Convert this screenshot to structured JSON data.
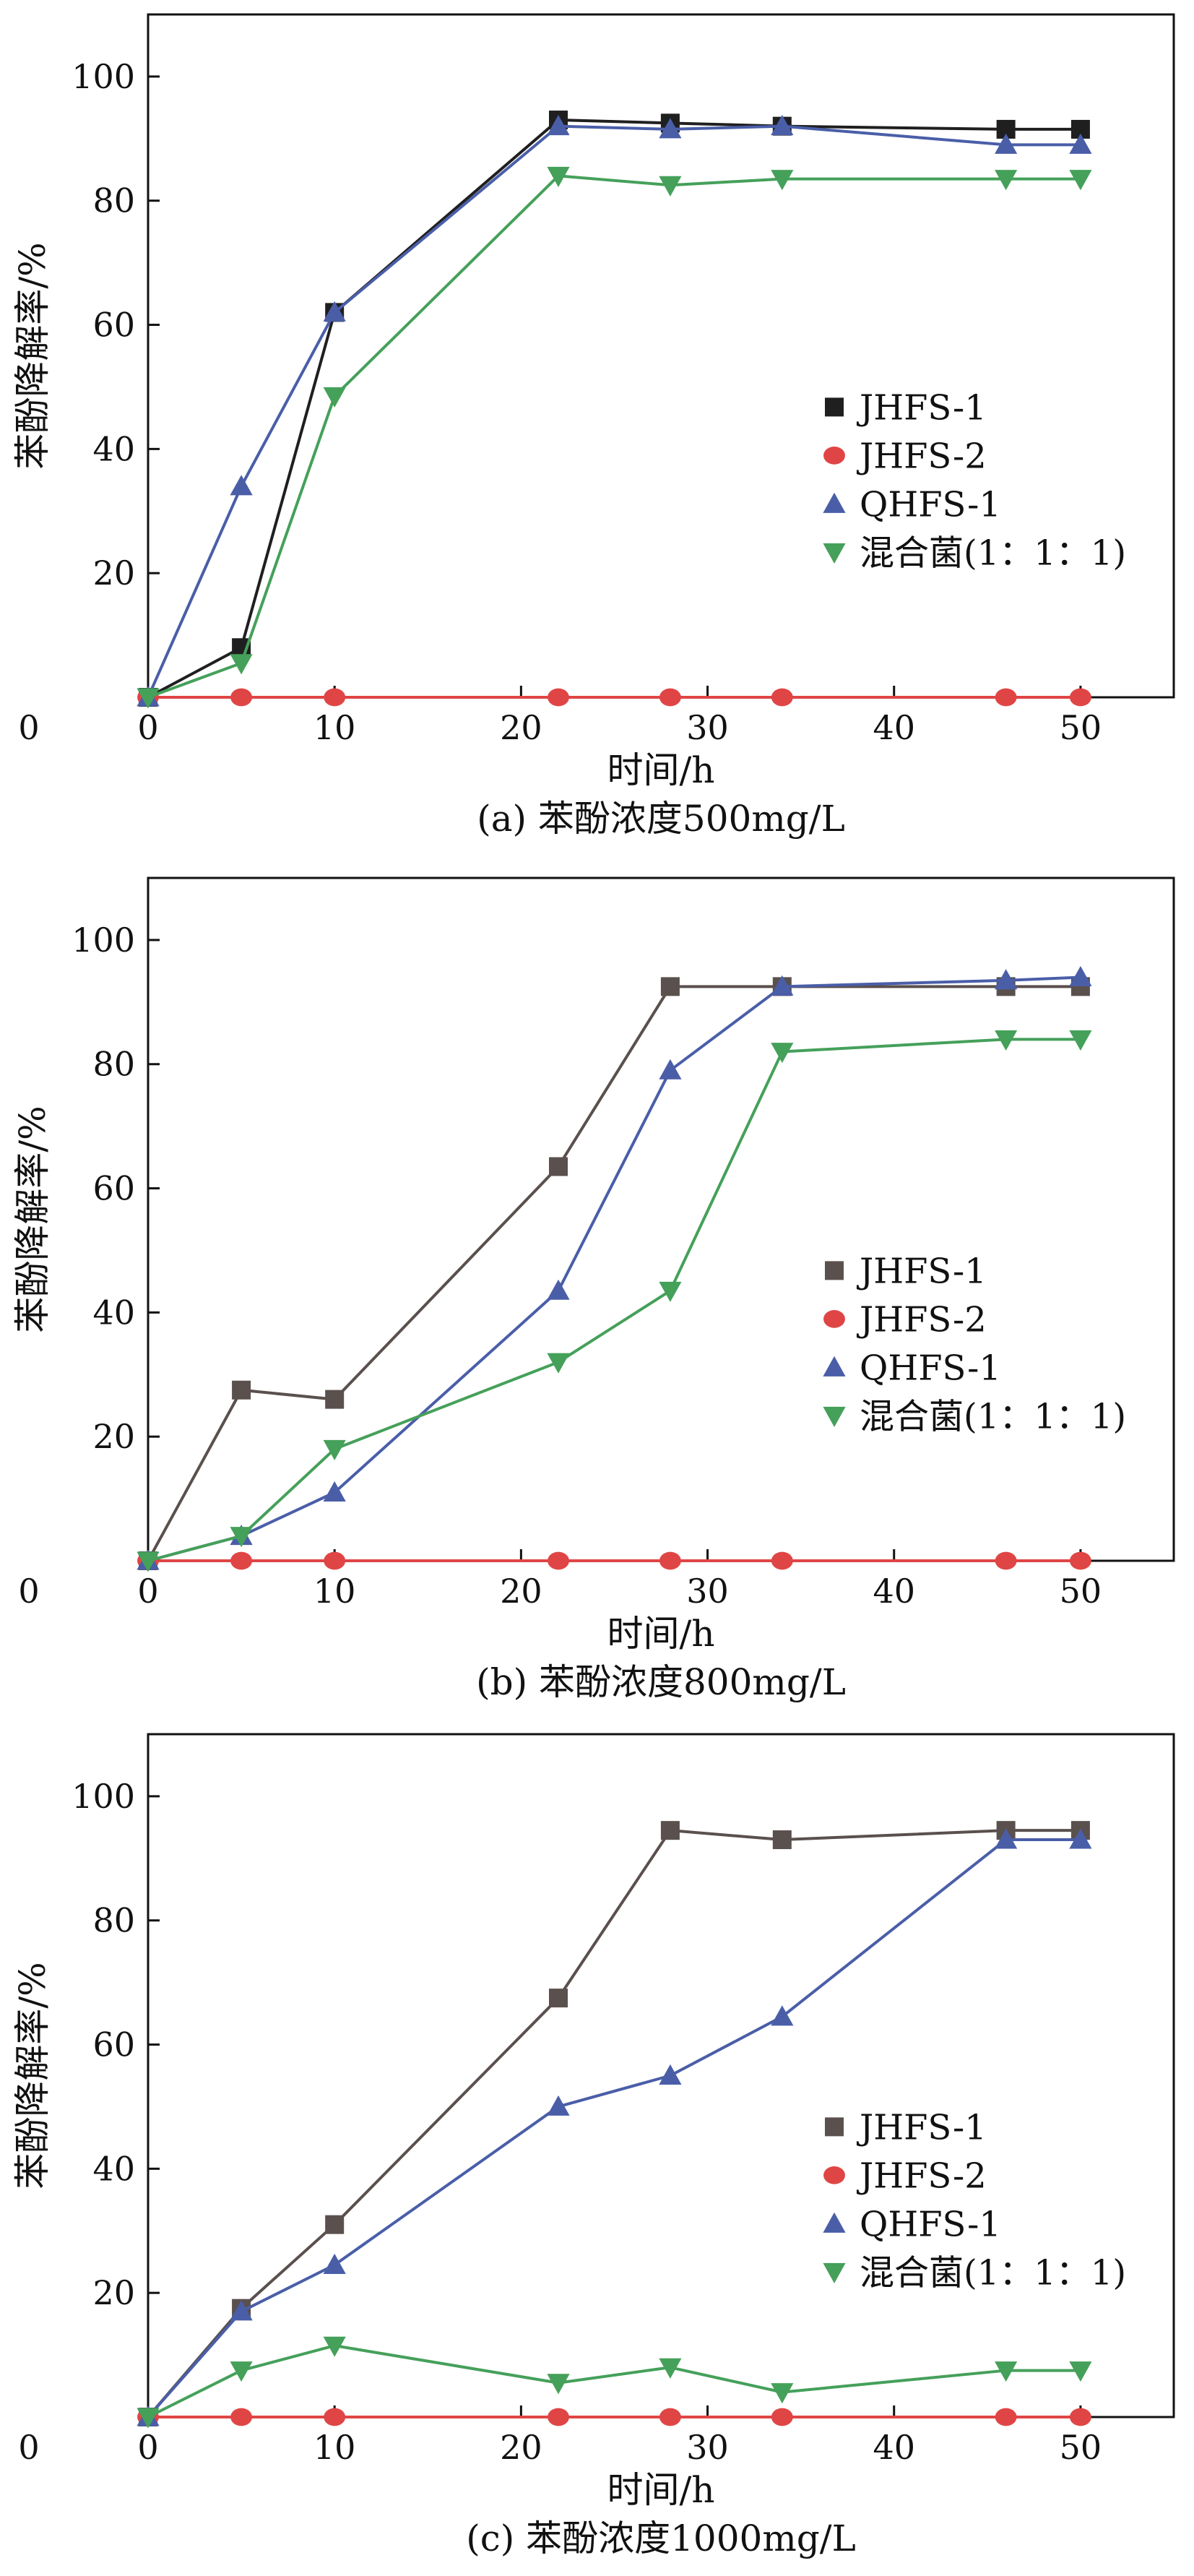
{
  "colors": {
    "JHFS-1": "#1f1f1f",
    "JHFS-1-bc": "#5a504d",
    "JHFS-2": "#e04545",
    "QHFS-1": "#4a5ea8",
    "mix": "#45a05a",
    "axis": "#111111",
    "background": "#ffffff"
  },
  "chart_data": [
    {
      "type": "line",
      "title": "",
      "caption": "(a) 苯酚浓度500mg/L",
      "xlabel": "时间/h",
      "ylabel": "苯酚降解率/%",
      "xlim": [
        0,
        55
      ],
      "ylim": [
        0,
        110
      ],
      "xticks": [
        0,
        10,
        20,
        30,
        40,
        50
      ],
      "yticks": [
        0,
        20,
        40,
        60,
        80,
        100
      ],
      "legend_position": "center-right",
      "series": [
        {
          "name": "JHFS-1",
          "marker": "square",
          "color": "#1f1f1f",
          "x": [
            0,
            5,
            10,
            22,
            28,
            34,
            46,
            50
          ],
          "y": [
            0,
            8,
            62,
            93,
            92.5,
            92,
            91.5,
            91.5
          ]
        },
        {
          "name": "JHFS-2",
          "marker": "circle",
          "color": "#e04545",
          "x": [
            0,
            5,
            10,
            22,
            28,
            34,
            46,
            50
          ],
          "y": [
            0,
            0,
            0,
            0,
            0,
            0,
            0,
            0
          ]
        },
        {
          "name": "QHFS-1",
          "marker": "triangle-up",
          "color": "#4a5ea8",
          "x": [
            0,
            5,
            10,
            22,
            28,
            34,
            46,
            50
          ],
          "y": [
            0,
            34,
            62,
            92,
            91.5,
            92,
            89,
            89
          ]
        },
        {
          "name": "混合菌(1：1：1)",
          "marker": "triangle-down",
          "color": "#45a05a",
          "x": [
            0,
            5,
            10,
            22,
            28,
            34,
            46,
            50
          ],
          "y": [
            0,
            5.5,
            48.5,
            84,
            82.5,
            83.5,
            83.5,
            83.5
          ]
        }
      ]
    },
    {
      "type": "line",
      "title": "",
      "caption": "(b) 苯酚浓度800mg/L",
      "xlabel": "时间/h",
      "ylabel": "苯酚降解率/%",
      "xlim": [
        0,
        55
      ],
      "ylim": [
        0,
        110
      ],
      "xticks": [
        0,
        10,
        20,
        30,
        40,
        50
      ],
      "yticks": [
        0,
        20,
        40,
        60,
        80,
        100
      ],
      "legend_position": "center-right",
      "series": [
        {
          "name": "JHFS-1",
          "marker": "square",
          "color": "#5a504d",
          "x": [
            0,
            5,
            10,
            22,
            28,
            34,
            46,
            50
          ],
          "y": [
            0,
            27.5,
            26,
            63.5,
            92.5,
            92.5,
            92.5,
            92.5
          ]
        },
        {
          "name": "JHFS-2",
          "marker": "circle",
          "color": "#e04545",
          "x": [
            0,
            5,
            10,
            22,
            28,
            34,
            46,
            50
          ],
          "y": [
            0,
            0,
            0,
            0,
            0,
            0,
            0,
            0
          ]
        },
        {
          "name": "QHFS-1",
          "marker": "triangle-up",
          "color": "#4a5ea8",
          "x": [
            0,
            5,
            10,
            22,
            28,
            34,
            46,
            50
          ],
          "y": [
            0,
            4,
            11,
            43.5,
            79,
            92.5,
            93.5,
            94
          ]
        },
        {
          "name": "混合菌(1：1：1)",
          "marker": "triangle-down",
          "color": "#45a05a",
          "x": [
            0,
            5,
            10,
            22,
            28,
            34,
            46,
            50
          ],
          "y": [
            0,
            4,
            18,
            32,
            43.5,
            82,
            84,
            84
          ]
        }
      ]
    },
    {
      "type": "line",
      "title": "",
      "caption": "(c) 苯酚浓度1000mg/L",
      "xlabel": "时间/h",
      "ylabel": "苯酚降解率/%",
      "xlim": [
        0,
        55
      ],
      "ylim": [
        0,
        110
      ],
      "xticks": [
        0,
        10,
        20,
        30,
        40,
        50
      ],
      "yticks": [
        0,
        20,
        40,
        60,
        80,
        100
      ],
      "legend_position": "center-right",
      "series": [
        {
          "name": "JHFS-1",
          "marker": "square",
          "color": "#5a504d",
          "x": [
            0,
            5,
            10,
            22,
            28,
            34,
            46,
            50
          ],
          "y": [
            0,
            17.5,
            31,
            67.5,
            94.5,
            93,
            94.5,
            94.5
          ]
        },
        {
          "name": "JHFS-2",
          "marker": "circle",
          "color": "#e04545",
          "x": [
            0,
            5,
            10,
            22,
            28,
            34,
            46,
            50
          ],
          "y": [
            0,
            0,
            0,
            0,
            0,
            0,
            0,
            0
          ]
        },
        {
          "name": "QHFS-1",
          "marker": "triangle-up",
          "color": "#4a5ea8",
          "x": [
            0,
            5,
            10,
            22,
            28,
            34,
            46,
            50
          ],
          "y": [
            0,
            17,
            24.5,
            50,
            55,
            64.5,
            93,
            93
          ]
        },
        {
          "name": "混合菌(1：1：1)",
          "marker": "triangle-down",
          "color": "#45a05a",
          "x": [
            0,
            5,
            10,
            22,
            28,
            34,
            46,
            50
          ],
          "y": [
            0,
            7.5,
            11.5,
            5.5,
            8,
            4,
            7.5,
            7.5
          ]
        }
      ]
    }
  ]
}
